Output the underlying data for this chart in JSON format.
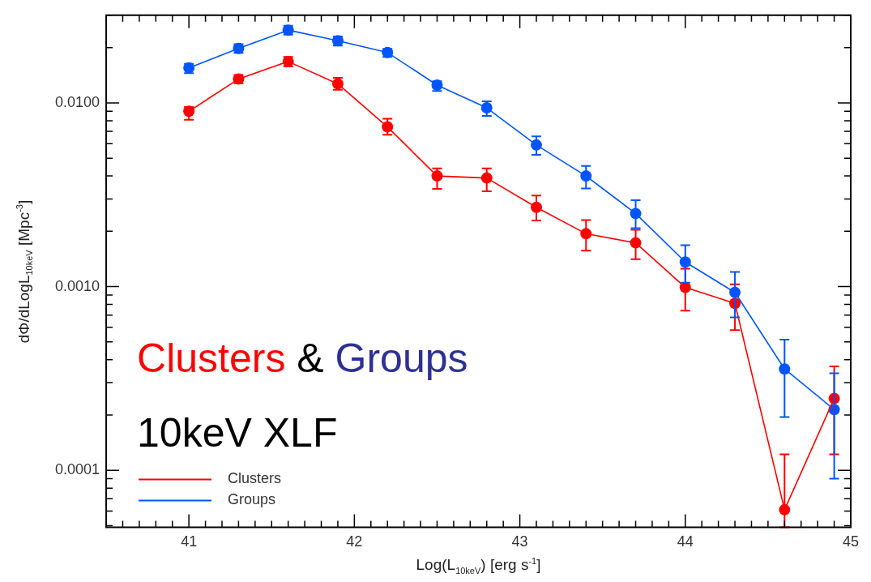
{
  "chart_data": {
    "type": "line",
    "xlabel": "Log(L$_{10keV}$) [erg s$^{-1}$]",
    "ylabel": "dΦ/dLogL$_{10keV}$ [Mpc$^{-3}$]",
    "annotations": [
      "Clusters & Groups",
      "10keV XLF"
    ],
    "x": [
      41.0,
      41.3,
      41.6,
      41.9,
      42.2,
      42.5,
      42.8,
      43.1,
      43.4,
      43.7,
      44.0,
      44.3,
      44.6,
      44.9
    ],
    "series": [
      {
        "name": "Clusters",
        "color": "#ff0000",
        "values": [
          0.009,
          0.0135,
          0.0168,
          0.0127,
          0.0074,
          0.004,
          0.0039,
          0.0027,
          0.00194,
          0.00173,
          0.00099,
          0.00081,
          6.1e-05,
          0.000246
        ],
        "errors": [
          [
            0.0081,
            0.0095
          ],
          [
            0.0128,
            0.0142
          ],
          [
            0.0158,
            0.0178
          ],
          [
            0.0118,
            0.0137
          ],
          [
            0.0067,
            0.0082
          ],
          [
            0.0034,
            0.0044
          ],
          [
            0.0033,
            0.0044
          ],
          [
            0.00229,
            0.00313
          ],
          [
            0.00157,
            0.0023
          ],
          [
            0.00141,
            0.00204
          ],
          [
            0.00074,
            0.00125
          ],
          [
            0.00058,
            0.00103
          ],
          [
            4.9e-05,
            0.000122
          ],
          [
            0.000122,
            0.000368
          ]
        ]
      },
      {
        "name": "Groups",
        "color": "#0055ff",
        "values": [
          0.0155,
          0.0198,
          0.0249,
          0.0218,
          0.0188,
          0.0125,
          0.0094,
          0.0059,
          0.004,
          0.0025,
          0.00136,
          0.00093,
          0.000356,
          0.000214
        ],
        "errors": [
          [
            0.0145,
            0.0163
          ],
          [
            0.0187,
            0.0209
          ],
          [
            0.0235,
            0.0263
          ],
          [
            0.0205,
            0.023
          ],
          [
            0.0178,
            0.0197
          ],
          [
            0.0116,
            0.0131
          ],
          [
            0.0085,
            0.0102
          ],
          [
            0.00522,
            0.00657
          ],
          [
            0.00342,
            0.00453
          ],
          [
            0.00208,
            0.00295
          ],
          [
            0.00105,
            0.00168
          ],
          [
            0.00068,
            0.0012
          ],
          [
            0.000195,
            0.000514
          ],
          [
            9e-05,
            0.000337
          ]
        ]
      }
    ],
    "xlim": [
      40.5,
      45.0
    ],
    "xticks": [
      {
        "value": 40.6,
        "label": null
      },
      {
        "value": 40.7,
        "label": null
      },
      {
        "value": 40.8,
        "label": null
      },
      {
        "value": 40.9,
        "label": null
      },
      41,
      {
        "value": 41.1,
        "label": null
      },
      {
        "value": 41.2,
        "label": null
      },
      {
        "value": 41.3,
        "label": null
      },
      {
        "value": 41.4,
        "label": null
      },
      {
        "value": 41.5,
        "label": null
      },
      {
        "value": 41.6,
        "label": null
      },
      {
        "value": 41.7,
        "label": null
      },
      {
        "value": 41.8,
        "label": null
      },
      {
        "value": 41.9,
        "label": null
      },
      42,
      {
        "value": 42.1,
        "label": null
      },
      {
        "value": 42.2,
        "label": null
      },
      {
        "value": 42.3,
        "label": null
      },
      {
        "value": 42.4,
        "label": null
      },
      {
        "value": 42.5,
        "label": null
      },
      {
        "value": 42.6,
        "label": null
      },
      {
        "value": 42.7,
        "label": null
      },
      {
        "value": 42.8,
        "label": null
      },
      {
        "value": 42.9,
        "label": null
      },
      43,
      {
        "value": 43.1,
        "label": null
      },
      {
        "value": 43.2,
        "label": null
      },
      {
        "value": 43.3,
        "label": null
      },
      {
        "value": 43.4,
        "label": null
      },
      {
        "value": 43.5,
        "label": null
      },
      {
        "value": 43.6,
        "label": null
      },
      {
        "value": 43.7,
        "label": null
      },
      {
        "value": 43.8,
        "label": null
      },
      {
        "value": 43.9,
        "label": null
      },
      44,
      {
        "value": 44.1,
        "label": null
      },
      {
        "value": 44.2,
        "label": null
      },
      {
        "value": 44.3,
        "label": null
      },
      {
        "value": 44.4,
        "label": null
      },
      {
        "value": 44.5,
        "label": null
      },
      {
        "value": 44.6,
        "label": null
      },
      {
        "value": 44.7,
        "label": null
      },
      {
        "value": 44.8,
        "label": null
      },
      {
        "value": 44.9,
        "label": null
      },
      45
    ],
    "ylim": [
      4.9e-05,
      0.03
    ],
    "yticks": [
      {
        "value": 5e-05,
        "label": null
      },
      {
        "value": 6e-05,
        "label": null
      },
      {
        "value": 7e-05,
        "label": null
      },
      {
        "value": 8e-05,
        "label": null
      },
      {
        "value": 9e-05,
        "label": null
      },
      {
        "value": 0.0001,
        "label": "0.0001"
      },
      {
        "value": 0.0002,
        "label": null
      },
      {
        "value": 0.0003,
        "label": null
      },
      {
        "value": 0.0004,
        "label": null
      },
      {
        "value": 0.0005,
        "label": null
      },
      {
        "value": 0.0006,
        "label": null
      },
      {
        "value": 0.0007,
        "label": null
      },
      {
        "value": 0.0008,
        "label": null
      },
      {
        "value": 0.0009,
        "label": null
      },
      {
        "value": 0.001,
        "label": "0.0010"
      },
      {
        "value": 0.002,
        "label": null
      },
      {
        "value": 0.003,
        "label": null
      },
      {
        "value": 0.004,
        "label": null
      },
      {
        "value": 0.005,
        "label": null
      },
      {
        "value": 0.006,
        "label": null
      },
      {
        "value": 0.007,
        "label": null
      },
      {
        "value": 0.008,
        "label": null
      },
      {
        "value": 0.009,
        "label": null
      },
      {
        "value": 0.01,
        "label": "0.0100"
      },
      {
        "value": 0.02,
        "label": null
      },
      {
        "value": 0.03,
        "label": null
      }
    ],
    "log": "y",
    "legend": "bottom left",
    "marker": "circle",
    "line_style": "solid"
  }
}
